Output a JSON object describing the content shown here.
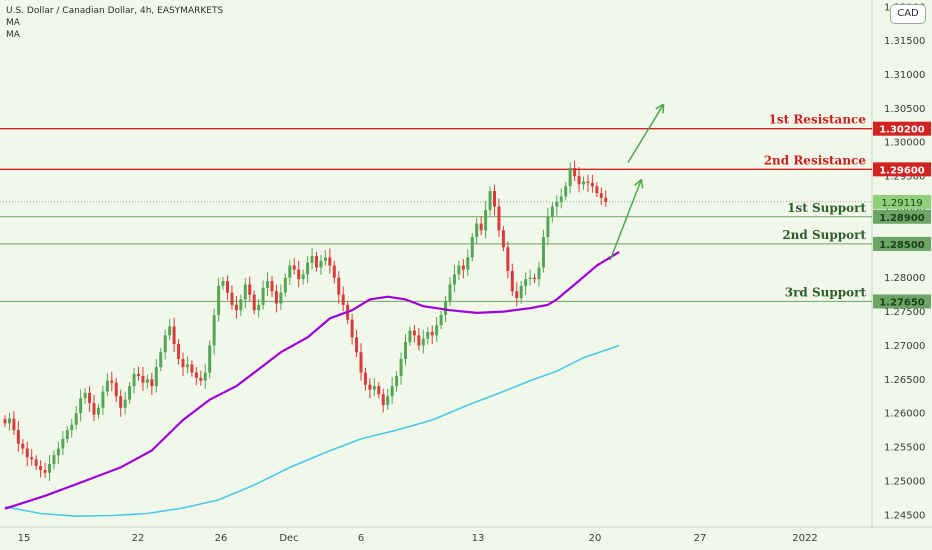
{
  "header": {
    "title": "U.S. Dollar / Canadian Dollar, 4h, EASYMARKETS",
    "indicators": [
      "MA",
      "MA"
    ]
  },
  "currency_button": "CAD",
  "colors": {
    "background": "#f1f8ea",
    "up_candle": "#53a653",
    "down_candle": "#d93a3a",
    "resistance": "#d32222",
    "support": "#6aa565",
    "ma_fast": "#a000d8",
    "ma_slow": "#4ac8ec",
    "arrow": "#4caa4c",
    "price_label": "#777777"
  },
  "chart_data": {
    "type": "candlestick",
    "title": "U.S. Dollar / Canadian Dollar, 4h, EASYMARKETS",
    "ylim": [
      1.2432,
      1.321
    ],
    "y_ticks": [
      "1.24500",
      "1.25000",
      "1.25500",
      "1.26000",
      "1.26500",
      "1.27000",
      "1.27500",
      "1.28000",
      "1.28500",
      "1.29000",
      "1.29500",
      "1.30000",
      "1.30500",
      "1.31000",
      "1.31500",
      "1.32000"
    ],
    "x_ticks": [
      "15",
      "22",
      "26",
      "Dec",
      "6",
      "13",
      "20",
      "27",
      "2022"
    ],
    "last_price": "1.29119",
    "levels": [
      {
        "name": "1st Resistance",
        "value": "1.30200",
        "kind": "resistance"
      },
      {
        "name": "2nd Resistance",
        "value": "1.29600",
        "kind": "resistance"
      },
      {
        "name": "1st Support",
        "value": "1.28900",
        "kind": "support"
      },
      {
        "name": "2nd Support",
        "value": "1.28500",
        "kind": "support"
      },
      {
        "name": "3rd Support",
        "value": "1.27650",
        "kind": "support"
      }
    ],
    "closes": [
      1.2585,
      1.2592,
      1.2575,
      1.2555,
      1.2548,
      1.2535,
      1.2532,
      1.2522,
      1.2516,
      1.2512,
      1.2525,
      1.2538,
      1.2548,
      1.2562,
      1.2575,
      1.2583,
      1.26,
      1.2622,
      1.263,
      1.2615,
      1.2598,
      1.2608,
      1.2632,
      1.2648,
      1.2645,
      1.2625,
      1.2608,
      1.262,
      1.264,
      1.2658,
      1.2655,
      1.2645,
      1.265,
      1.264,
      1.2668,
      1.269,
      1.2715,
      1.2728,
      1.2702,
      1.268,
      1.2668,
      1.2672,
      1.266,
      1.2652,
      1.2648,
      1.266,
      1.27,
      1.2745,
      1.2788,
      1.2795,
      1.2778,
      1.276,
      1.2752,
      1.2768,
      1.279,
      1.2775,
      1.2752,
      1.276,
      1.2785,
      1.2795,
      1.278,
      1.2762,
      1.2778,
      1.28,
      1.2818,
      1.2812,
      1.2798,
      1.2805,
      1.2822,
      1.2832,
      1.2815,
      1.2825,
      1.283,
      1.2818,
      1.28,
      1.2775,
      1.276,
      1.2738,
      1.2712,
      1.269,
      1.266,
      1.2642,
      1.2635,
      1.264,
      1.2628,
      1.2612,
      1.2625,
      1.264,
      1.2655,
      1.268,
      1.2705,
      1.2722,
      1.2715,
      1.27,
      1.271,
      1.272,
      1.2715,
      1.273,
      1.2745,
      1.2765,
      1.279,
      1.2805,
      1.2818,
      1.2812,
      1.283,
      1.286,
      1.288,
      1.287,
      1.29,
      1.2928,
      1.2905,
      1.287,
      1.2845,
      1.281,
      1.278,
      1.277,
      1.2788,
      1.2798,
      1.28,
      1.2798,
      1.2815,
      1.286,
      1.289,
      1.2905,
      1.2912,
      1.292,
      1.2935,
      1.2962,
      1.295,
      1.2938,
      1.2942,
      1.294,
      1.2935,
      1.2925,
      1.2918,
      1.2912
    ],
    "ma_fast": [
      [
        0,
        1.2459
      ],
      [
        9,
        1.2478
      ],
      [
        18,
        1.25
      ],
      [
        26,
        1.252
      ],
      [
        33,
        1.2545
      ],
      [
        40,
        1.259
      ],
      [
        46,
        1.262
      ],
      [
        52,
        1.264
      ],
      [
        56,
        1.266
      ],
      [
        62,
        1.269
      ],
      [
        68,
        1.2712
      ],
      [
        73,
        1.274
      ],
      [
        78,
        1.2752
      ],
      [
        82,
        1.2768
      ],
      [
        86,
        1.2772
      ],
      [
        90,
        1.2768
      ],
      [
        94,
        1.2758
      ],
      [
        100,
        1.2752
      ],
      [
        106,
        1.2748
      ],
      [
        112,
        1.275
      ],
      [
        118,
        1.2755
      ],
      [
        122,
        1.276
      ],
      [
        124,
        1.2768
      ],
      [
        128,
        1.279
      ],
      [
        133,
        1.2818
      ],
      [
        138,
        1.2838
      ]
    ],
    "ma_slow": [
      [
        0,
        1.2462
      ],
      [
        8,
        1.2452
      ],
      [
        16,
        1.2448
      ],
      [
        24,
        1.2449
      ],
      [
        32,
        1.2452
      ],
      [
        40,
        1.246
      ],
      [
        48,
        1.2472
      ],
      [
        56,
        1.2494
      ],
      [
        64,
        1.252
      ],
      [
        72,
        1.2542
      ],
      [
        80,
        1.2562
      ],
      [
        88,
        1.2575
      ],
      [
        96,
        1.259
      ],
      [
        104,
        1.2612
      ],
      [
        112,
        1.2632
      ],
      [
        118,
        1.2648
      ],
      [
        124,
        1.2662
      ],
      [
        130,
        1.2682
      ],
      [
        138,
        1.27
      ]
    ],
    "arrows": [
      {
        "from": [
          140,
          1.297
        ],
        "to": [
          148,
          1.3056
        ]
      },
      {
        "from": [
          136,
          1.2826
        ],
        "to": [
          143,
          1.2945
        ]
      }
    ]
  }
}
